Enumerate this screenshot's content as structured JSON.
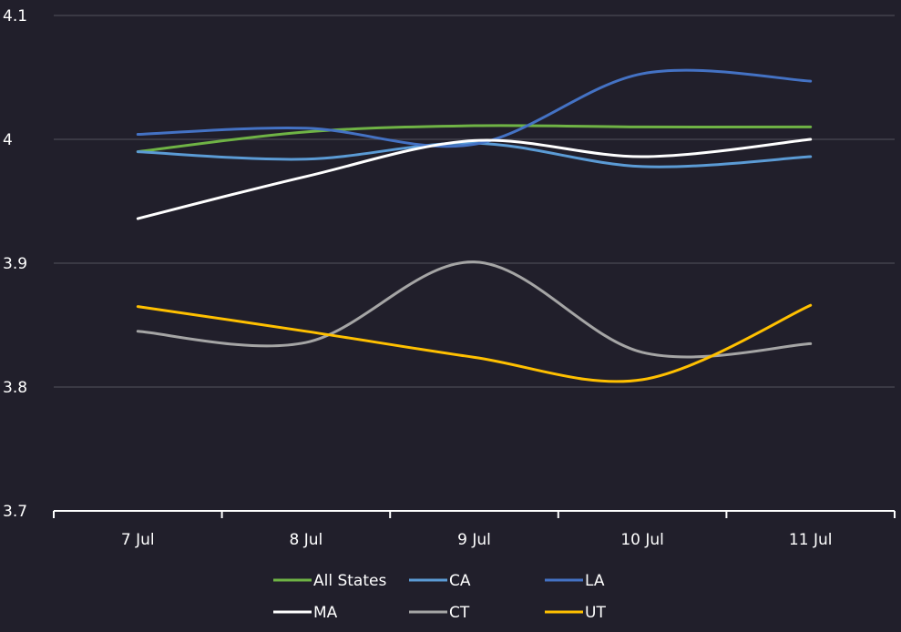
{
  "chart_data": {
    "type": "line",
    "title": "",
    "xlabel": "",
    "ylabel": "",
    "categories": [
      "7 Jul",
      "8 Jul",
      "9 Jul",
      "10 Jul",
      "11 Jul"
    ],
    "ylim": [
      3.7,
      4.1
    ],
    "yticks": [
      {
        "value": 3.7,
        "label": "3.7"
      },
      {
        "value": 3.8,
        "label": "3.8"
      },
      {
        "value": 3.9,
        "label": "3.9"
      },
      {
        "value": 4.0,
        "label": "4"
      },
      {
        "value": 4.1,
        "label": "4.1"
      }
    ],
    "grid": true,
    "legend_position": "bottom",
    "series": [
      {
        "name": "All States",
        "color": "#6fb345",
        "values": [
          3.99,
          4.006,
          4.011,
          4.01,
          4.01
        ]
      },
      {
        "name": "CA",
        "color": "#5b9bd5",
        "values": [
          3.99,
          3.984,
          3.997,
          3.978,
          3.986
        ]
      },
      {
        "name": "LA",
        "color": "#4472c4",
        "values": [
          4.004,
          4.009,
          3.996,
          4.053,
          4.047
        ]
      },
      {
        "name": "MA",
        "color": "#ffffff",
        "values": [
          3.936,
          3.97,
          3.999,
          3.986,
          4.0
        ]
      },
      {
        "name": "CT",
        "color": "#a5a5a5",
        "values": [
          3.845,
          3.836,
          3.901,
          3.828,
          3.835
        ]
      },
      {
        "name": "UT",
        "color": "#ffc000",
        "values": [
          3.865,
          3.845,
          3.824,
          3.806,
          3.866
        ]
      }
    ]
  }
}
